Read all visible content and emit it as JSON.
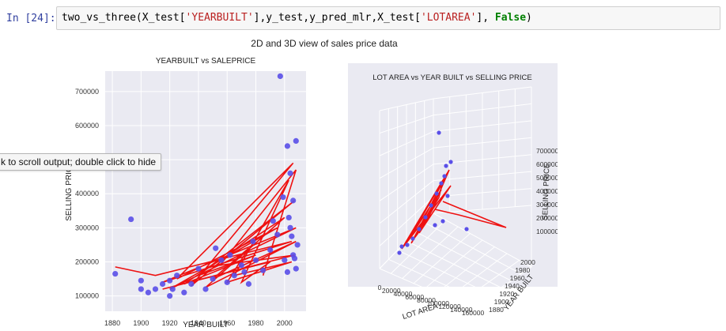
{
  "cell": {
    "prompt": "In [24]:",
    "code_fn": "two_vs_three(X_test[",
    "code_s1": "'YEARBUILT'",
    "code_mid": "],y_test,y_pred_mlr,X_test[",
    "code_s2": "'LOTAREA'",
    "code_end1": "], ",
    "code_kw": "False",
    "code_end2": ")"
  },
  "output": {
    "figure_title": "2D and 3D view of sales price data",
    "tooltip": "k to scroll output; double click to hide"
  },
  "chart_data": [
    {
      "type": "scatter",
      "title": "YEARBUILT vs SALEPRICE",
      "xlabel": "YEAR BUILT",
      "ylabel": "SELLING PRICE",
      "xlim": [
        1875,
        2015
      ],
      "ylim": [
        55000,
        760000
      ],
      "x_ticks": [
        "1880",
        "1900",
        "1920",
        "1940",
        "1960",
        "1980",
        "2000"
      ],
      "y_ticks": [
        "100000",
        "200000",
        "300000",
        "400000",
        "500000",
        "600000",
        "700000"
      ],
      "x_tick_values": [
        1880,
        1900,
        1920,
        1940,
        1960,
        1980,
        2000
      ],
      "y_tick_values": [
        100000,
        200000,
        300000,
        400000,
        500000,
        600000,
        700000
      ],
      "grid": true,
      "point_color": "#5a4fe8",
      "line_color": "#ee1111",
      "points": [
        [
          1882,
          165000
        ],
        [
          1893,
          325000
        ],
        [
          1900,
          120000
        ],
        [
          1900,
          145000
        ],
        [
          1905,
          110000
        ],
        [
          1910,
          120000
        ],
        [
          1915,
          135000
        ],
        [
          1920,
          100000
        ],
        [
          1920,
          145000
        ],
        [
          1922,
          120000
        ],
        [
          1925,
          160000
        ],
        [
          1930,
          110000
        ],
        [
          1935,
          135000
        ],
        [
          1940,
          180000
        ],
        [
          1945,
          120000
        ],
        [
          1950,
          150000
        ],
        [
          1952,
          240000
        ],
        [
          1956,
          205000
        ],
        [
          1960,
          140000
        ],
        [
          1962,
          220000
        ],
        [
          1965,
          160000
        ],
        [
          1970,
          190000
        ],
        [
          1972,
          170000
        ],
        [
          1975,
          135000
        ],
        [
          1978,
          260000
        ],
        [
          1980,
          205000
        ],
        [
          1985,
          175000
        ],
        [
          1990,
          235000
        ],
        [
          1992,
          320000
        ],
        [
          1995,
          280000
        ],
        [
          1997,
          745000
        ],
        [
          1999,
          390000
        ],
        [
          2000,
          205000
        ],
        [
          2002,
          540000
        ],
        [
          2003,
          330000
        ],
        [
          2004,
          460000
        ],
        [
          2005,
          275000
        ],
        [
          2006,
          380000
        ],
        [
          2007,
          210000
        ],
        [
          2008,
          555000
        ],
        [
          2008,
          180000
        ],
        [
          2009,
          250000
        ],
        [
          2006,
          220000
        ],
        [
          2004,
          300000
        ],
        [
          2002,
          170000
        ]
      ],
      "line": [
        [
          1882,
          185000
        ],
        [
          1910,
          160000
        ],
        [
          2005,
          260000
        ],
        [
          1915,
          140000
        ],
        [
          2008,
          300000
        ],
        [
          1920,
          120000
        ],
        [
          1995,
          300000
        ],
        [
          1925,
          150000
        ],
        [
          2006,
          490000
        ],
        [
          1935,
          130000
        ],
        [
          2007,
          380000
        ],
        [
          1940,
          160000
        ],
        [
          1980,
          220000
        ],
        [
          1930,
          135000
        ],
        [
          2000,
          330000
        ],
        [
          1945,
          125000
        ],
        [
          2008,
          260000
        ],
        [
          1950,
          150000
        ],
        [
          1975,
          240000
        ],
        [
          1960,
          140000
        ],
        [
          2005,
          200000
        ],
        [
          1965,
          160000
        ],
        [
          2003,
          440000
        ],
        [
          1970,
          140000
        ],
        [
          1990,
          200000
        ],
        [
          1915,
          120000
        ],
        [
          2007,
          220000
        ],
        [
          1955,
          190000
        ],
        [
          2008,
          470000
        ],
        [
          1985,
          160000
        ]
      ]
    },
    {
      "type": "scatter",
      "title": "LOT AREA vs YEAR BUILT vs SELLING PRICE",
      "xlabel": "LOT AREA",
      "ylabel": "YEAR BUILT",
      "zlabel": "SELLING PRICE",
      "x_ticks": [
        "0",
        "20000",
        "40000",
        "60000",
        "80000",
        "100000",
        "120000",
        "140000",
        "160000"
      ],
      "y_ticks": [
        "1880",
        "1900",
        "1920",
        "1940",
        "1960",
        "1980",
        "2000"
      ],
      "z_ticks": [
        "100000",
        "200000",
        "300000",
        "400000",
        "500000",
        "600000",
        "700000"
      ],
      "grid": true,
      "point_color": "#5a4fe8",
      "line_color": "#ee1111"
    }
  ]
}
